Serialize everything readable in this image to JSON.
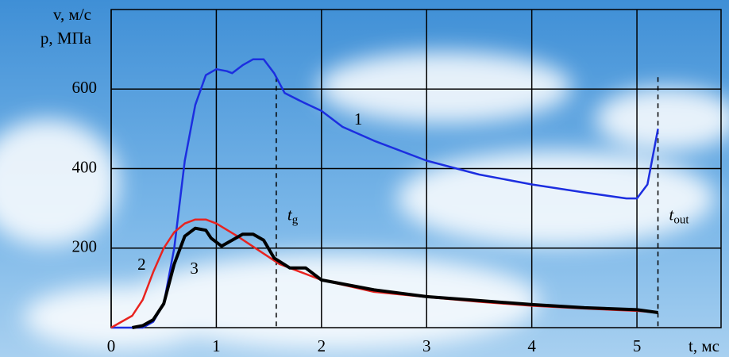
{
  "chart_data": {
    "type": "line",
    "ylabel_lines": [
      "v, м/с",
      "p, МПа"
    ],
    "xlabel": "t, мс",
    "xlim": [
      0,
      5.8
    ],
    "ylim": [
      0,
      800
    ],
    "xticks": [
      0,
      1,
      2,
      3,
      4,
      5
    ],
    "yticks": [
      200,
      400,
      600
    ],
    "grid": true,
    "series": [
      {
        "name": "1",
        "color": "#1c2ee0",
        "x": [
          0,
          0.3,
          0.4,
          0.5,
          0.6,
          0.7,
          0.8,
          0.9,
          1.0,
          1.1,
          1.15,
          1.25,
          1.35,
          1.45,
          1.55,
          1.65,
          1.8,
          2.0,
          2.2,
          2.5,
          3.0,
          3.5,
          4.0,
          4.5,
          4.9,
          5.0,
          5.1,
          5.2
        ],
        "values": [
          0,
          0,
          15,
          60,
          200,
          420,
          560,
          635,
          650,
          645,
          640,
          660,
          675,
          675,
          640,
          590,
          570,
          545,
          505,
          470,
          420,
          385,
          360,
          340,
          325,
          325,
          360,
          500
        ]
      },
      {
        "name": "2",
        "color": "#e8231f",
        "x": [
          0,
          0.1,
          0.2,
          0.3,
          0.4,
          0.5,
          0.6,
          0.7,
          0.8,
          0.9,
          1.0,
          1.2,
          1.4,
          1.6,
          1.8,
          2.0,
          2.5,
          3.0,
          3.5,
          4.0,
          4.5,
          5.0,
          5.2
        ],
        "values": [
          0,
          15,
          30,
          70,
          140,
          200,
          240,
          262,
          272,
          272,
          262,
          230,
          195,
          160,
          140,
          120,
          90,
          77,
          65,
          55,
          48,
          42,
          38
        ]
      },
      {
        "name": "3",
        "color": "#000000",
        "x": [
          0.2,
          0.3,
          0.4,
          0.5,
          0.6,
          0.7,
          0.8,
          0.9,
          0.95,
          1.05,
          1.15,
          1.25,
          1.35,
          1.45,
          1.55,
          1.7,
          1.85,
          2.0,
          2.5,
          3.0,
          3.5,
          4.0,
          4.5,
          5.0,
          5.2
        ],
        "values": [
          0,
          5,
          20,
          60,
          160,
          230,
          250,
          245,
          225,
          205,
          220,
          235,
          235,
          220,
          175,
          150,
          150,
          120,
          95,
          78,
          68,
          58,
          50,
          45,
          38
        ]
      }
    ],
    "markers": [
      {
        "label": "t",
        "sub": "g",
        "x": 1.57
      },
      {
        "label": "t",
        "sub": "out",
        "x": 5.2
      }
    ]
  }
}
